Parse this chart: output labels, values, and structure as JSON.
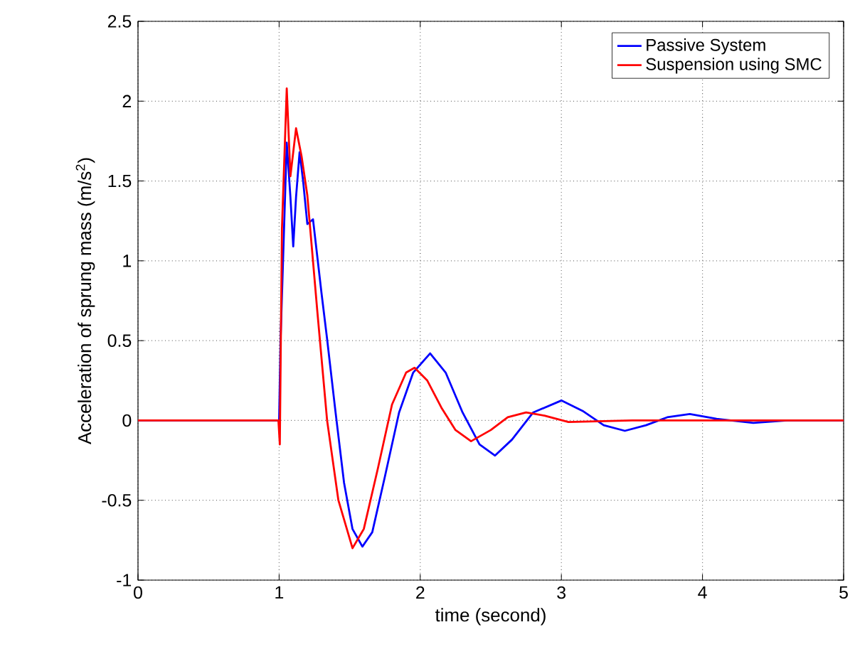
{
  "chart_data": {
    "type": "line",
    "xlabel": "time (second)",
    "ylabel": "Acceleration of sprung mass (m/s$^{2}$)",
    "xlim": [
      0,
      5
    ],
    "ylim": [
      -1,
      2.5
    ],
    "xticks": [
      0,
      1,
      2,
      3,
      4,
      5
    ],
    "yticks": [
      -1,
      -0.5,
      0,
      0.5,
      1,
      1.5,
      2,
      2.5
    ],
    "grid": true,
    "legend": "top right",
    "line_style": "solid",
    "marker": "none",
    "series": [
      {
        "name": "Passive System",
        "color": "#0000ff",
        "x": [
          0,
          0.5,
          1.0,
          1.01,
          1.054,
          1.08,
          1.1,
          1.12,
          1.145,
          1.17,
          1.2,
          1.24,
          1.3,
          1.34,
          1.4,
          1.46,
          1.52,
          1.59,
          1.66,
          1.75,
          1.85,
          1.95,
          2.07,
          2.18,
          2.3,
          2.42,
          2.53,
          2.65,
          2.8,
          3.0,
          3.15,
          3.3,
          3.45,
          3.6,
          3.75,
          3.91,
          4.1,
          4.36,
          4.6,
          5.0
        ],
        "values": [
          0,
          0,
          0,
          0.5,
          1.74,
          1.4,
          1.09,
          1.4,
          1.68,
          1.5,
          1.23,
          1.26,
          0.8,
          0.51,
          0.05,
          -0.39,
          -0.68,
          -0.79,
          -0.7,
          -0.35,
          0.05,
          0.3,
          0.42,
          0.3,
          0.05,
          -0.15,
          -0.22,
          -0.12,
          0.05,
          0.125,
          0.06,
          -0.03,
          -0.065,
          -0.03,
          0.02,
          0.04,
          0.01,
          -0.015,
          0,
          0
        ]
      },
      {
        "name": "Suspension using SMC",
        "color": "#ff0000",
        "x": [
          0,
          0.5,
          0.995,
          1.005,
          1.02,
          1.054,
          1.08,
          1.12,
          1.16,
          1.2,
          1.27,
          1.34,
          1.42,
          1.52,
          1.6,
          1.7,
          1.8,
          1.9,
          1.96,
          2.05,
          2.15,
          2.25,
          2.36,
          2.5,
          2.62,
          2.75,
          2.88,
          3.05,
          3.5,
          4.0,
          5.0
        ],
        "values": [
          0,
          0,
          0,
          -0.15,
          1.2,
          2.08,
          1.53,
          1.83,
          1.65,
          1.41,
          0.69,
          0,
          -0.5,
          -0.8,
          -0.68,
          -0.3,
          0.1,
          0.3,
          0.33,
          0.25,
          0.08,
          -0.06,
          -0.13,
          -0.06,
          0.02,
          0.05,
          0.03,
          -0.01,
          0,
          0,
          0
        ]
      }
    ]
  }
}
